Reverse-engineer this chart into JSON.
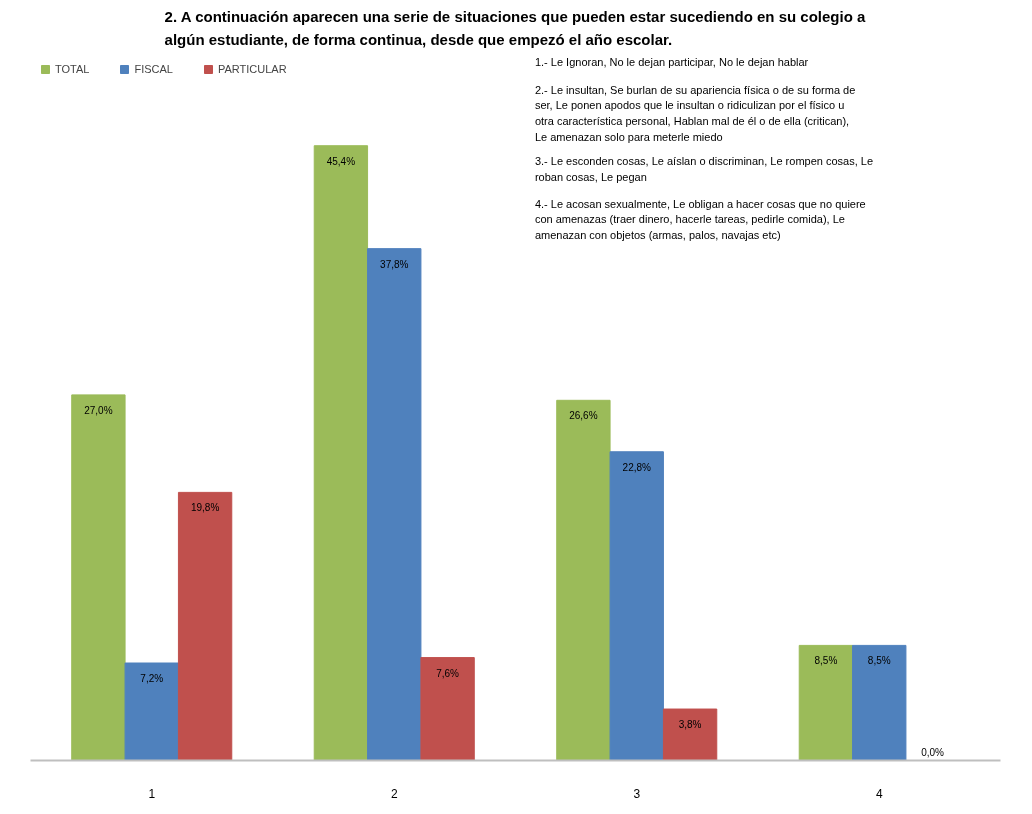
{
  "chart_data": {
    "type": "bar",
    "title": "2. A continuación aparecen una serie de situaciones que pueden estar sucediendo en su colegio a algún estudiante, de forma continua, desde que empezó el año escolar.",
    "categories": [
      "1",
      "2",
      "3",
      "4"
    ],
    "series": [
      {
        "name": "TOTAL",
        "color": "#9bbb59",
        "values": [
          27.0,
          45.4,
          26.6,
          8.5
        ],
        "value_labels": [
          "27,0%",
          "45,4%",
          "26,6%",
          "8,5%"
        ]
      },
      {
        "name": "FISCAL",
        "color": "#4f81bd",
        "values": [
          7.2,
          37.8,
          22.8,
          8.5
        ],
        "value_labels": [
          "7,2%",
          "37,8%",
          "22,8%",
          "8,5%"
        ]
      },
      {
        "name": "PARTICULAR",
        "color": "#c0504d",
        "values": [
          19.8,
          7.6,
          3.8,
          0.0
        ],
        "value_labels": [
          "19,8%",
          "7,6%",
          "3,8%",
          "0,0%"
        ]
      }
    ],
    "annotations": [
      "1.- Le Ignoran, No le dejan participar, No le dejan hablar",
      "2.- Le insultan, Se burlan de su apariencia física o de su forma de ser, Le ponen apodos que le insultan o ridiculizan por el físico u otra característica personal, Hablan mal de él o de ella (critican), Le amenazan solo para meterle miedo",
      "3.- Le esconden cosas, Le aíslan o discriminan, Le rompen cosas, Le roban cosas, Le pegan",
      "4.- Le acosan sexualmente, Le obligan a hacer cosas que no quiere con amenazas (traer dinero, hacerle tareas, pedirle comida), Le amenazan con objetos (armas, palos, navajas etc)"
    ],
    "legend": "top left",
    "tick_labels": "x"
  }
}
